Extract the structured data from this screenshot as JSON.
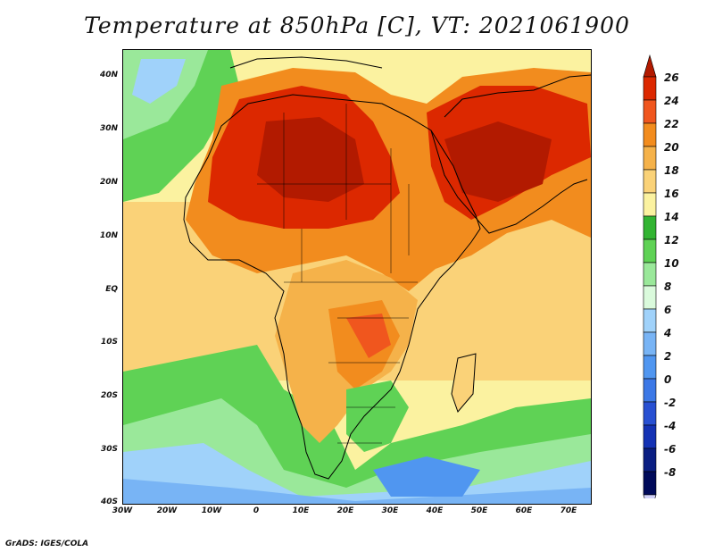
{
  "title": "Temperature at 850hPa [C], VT: 2021061900",
  "credit": "GrADS: IGES/COLA",
  "lat_labels": [
    "40N",
    "30N",
    "20N",
    "10N",
    "EQ",
    "10S",
    "20S",
    "30S",
    "40S"
  ],
  "lon_labels": [
    "30W",
    "20W",
    "10W",
    "0",
    "10E",
    "20E",
    "30E",
    "40E",
    "50E",
    "60E",
    "70E"
  ],
  "colorbar": {
    "labels": [
      "26",
      "24",
      "22",
      "20",
      "18",
      "16",
      "14",
      "12",
      "10",
      "8",
      "6",
      "4",
      "2",
      "0",
      "-2",
      "-4",
      "-6",
      "-8"
    ],
    "colors": [
      "#b21a00",
      "#dc2800",
      "#f0561e",
      "#f28c1e",
      "#f5b24a",
      "#fad278",
      "#fbf2a0",
      "#32b432",
      "#5fd255",
      "#9ae89a",
      "#dafadc",
      "#a0d2fa",
      "#78b4f5",
      "#5096f0",
      "#3c78e6",
      "#2850d2",
      "#1432b4",
      "#0a1e82",
      "#000a5a",
      "#d2d2fa"
    ]
  },
  "colors": {
    "land_outline": "#000000",
    "background": "#ffffff"
  }
}
